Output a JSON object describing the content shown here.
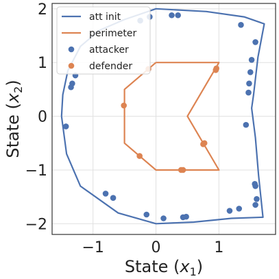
{
  "chart_data": {
    "type": "scatter",
    "xlabel_main": "State (",
    "xlabel_var": "x",
    "xlabel_sub": "1",
    "xlabel_close": ")",
    "ylabel_main": "State (",
    "ylabel_var": "x",
    "ylabel_sub": "2",
    "ylabel_close": ")",
    "xlim": [
      -1.65,
      1.9
    ],
    "ylim": [
      -2.2,
      2.1
    ],
    "xticks": [
      -1,
      0,
      1
    ],
    "xtick_labels": [
      "−1",
      "0",
      "1"
    ],
    "yticks": [
      -2,
      -1,
      0,
      1,
      2
    ],
    "ytick_labels": [
      "−2",
      "−1",
      "0",
      "1",
      "2"
    ],
    "grid": true,
    "legend_position": "top-left",
    "colors": {
      "att_init": "#4c72b0",
      "perimeter": "#dd8452",
      "attacker": "#4c72b0",
      "defender": "#dd8452",
      "grid": "#e0e0e0",
      "spine": "#333333"
    },
    "series": [
      {
        "name": "att init",
        "kind": "line",
        "points": [
          [
            -1.5,
            0
          ],
          [
            -1.48,
            0.4
          ],
          [
            -1.4,
            0.85
          ],
          [
            -1.2,
            1.3
          ],
          [
            -0.9,
            1.6
          ],
          [
            -0.5,
            1.8
          ],
          [
            0,
            2
          ],
          [
            0.8,
            1.95
          ],
          [
            1.4,
            1.85
          ],
          [
            1.72,
            1.72
          ],
          [
            1.62,
            1.1
          ],
          [
            1.55,
            0.4
          ],
          [
            1.52,
            0.15
          ],
          [
            1.58,
            -0.4
          ],
          [
            1.63,
            -1.1
          ],
          [
            1.7,
            -1.88
          ],
          [
            1.2,
            -1.9
          ],
          [
            0.6,
            -1.97
          ],
          [
            0,
            -2
          ],
          [
            -0.6,
            -1.8
          ],
          [
            -1.2,
            -1.3
          ],
          [
            -1.42,
            -0.7
          ],
          [
            -1.5,
            0
          ]
        ]
      },
      {
        "name": "perimeter",
        "kind": "line",
        "points": [
          [
            0,
            1
          ],
          [
            1,
            1
          ],
          [
            0.5,
            0
          ],
          [
            1,
            -1
          ],
          [
            0,
            -1
          ],
          [
            -0.5,
            -0.5
          ],
          [
            -0.5,
            0.5
          ],
          [
            0,
            1
          ]
        ]
      },
      {
        "name": "attacker",
        "kind": "scatter",
        "points": [
          [
            0.35,
            1.88
          ],
          [
            0.25,
            1.88
          ],
          [
            -0.1,
            1.85
          ],
          [
            1.35,
            1.7
          ],
          [
            1.58,
            1.38
          ],
          [
            1.52,
            1.05
          ],
          [
            1.5,
            0.82
          ],
          [
            1.48,
            0.61
          ],
          [
            1.47,
            0.44
          ],
          [
            1.43,
            -0.16
          ],
          [
            1.57,
            -1.26
          ],
          [
            1.58,
            -1.3
          ],
          [
            1.6,
            -1.54
          ],
          [
            1.58,
            -1.65
          ],
          [
            1.32,
            -1.72
          ],
          [
            1.17,
            -1.76
          ],
          [
            0.48,
            -1.87
          ],
          [
            0.43,
            -1.88
          ],
          [
            0.12,
            -1.9
          ],
          [
            -0.15,
            -1.83
          ],
          [
            -0.68,
            -1.52
          ],
          [
            -0.8,
            -1.44
          ],
          [
            -1.28,
            0.76
          ],
          [
            -1.33,
            0.61
          ],
          [
            -1.35,
            0.54
          ],
          [
            -1.43,
            -0.19
          ],
          [
            -0.25,
            1.78
          ]
        ]
      },
      {
        "name": "defender",
        "kind": "scatter",
        "points": [
          [
            -0.12,
            0.88
          ],
          [
            0.95,
            0.86
          ],
          [
            0.96,
            0.89
          ],
          [
            -0.51,
            0.2
          ],
          [
            0.75,
            -0.52
          ],
          [
            0.77,
            -0.5
          ],
          [
            -0.26,
            -0.74
          ],
          [
            0.4,
            -1
          ],
          [
            0.43,
            -1
          ]
        ]
      }
    ]
  }
}
